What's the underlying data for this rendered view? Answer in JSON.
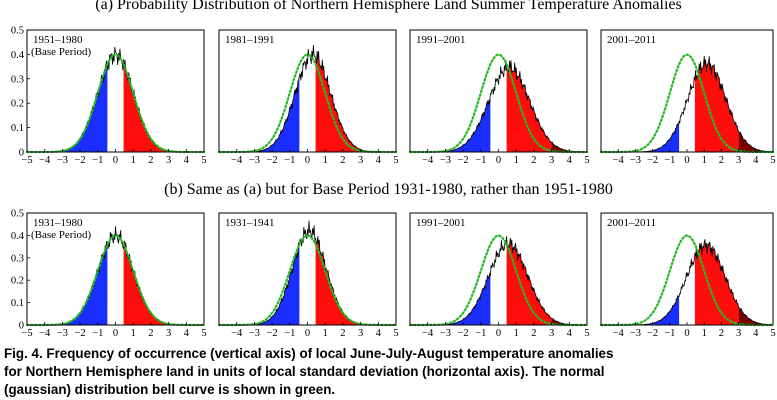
{
  "figure": {
    "row_a_title": "(a) Probability Distribution of Northern Hemisphere Land Summer Temperature Anomalies",
    "row_b_title": "(b) Same as (a) but for Base Period 1931-1980, rather than 1951-1980",
    "caption_lines": [
      "Fig. 4.  Frequency of occurrence (vertical axis) of local June-July-August temperature anomalies",
      "for Northern Hemisphere land in units of local standard deviation (horizontal axis).   The normal",
      "(gaussian) distribution bell curve is shown in green."
    ]
  },
  "colors": {
    "cold": "#1a2fff",
    "hot": "#ff0d0d",
    "extreme_hot": "#7a0000",
    "normal_curve": "#22bb22",
    "histogram_line": "#000000"
  },
  "chart_data": [
    {
      "type": "area",
      "row": "a",
      "panel_label": "1951–1980",
      "panel_sublabel": "(Base Period)",
      "mean": 0.0,
      "sd": 1.0,
      "xlim": [
        -5,
        5
      ],
      "ylim": [
        0,
        0.5
      ],
      "xticks": [
        -5,
        -4,
        -3,
        -2,
        -1,
        0,
        1,
        2,
        3,
        4,
        5
      ],
      "yticks": [
        0,
        0.1,
        0.2,
        0.3,
        0.4,
        0.5
      ],
      "show_yticks": true,
      "show_normal_curve": true
    },
    {
      "type": "area",
      "row": "a",
      "panel_label": "1981–1991",
      "panel_sublabel": "",
      "mean": 0.3,
      "sd": 1.0,
      "xlim": [
        -5,
        5
      ],
      "ylim": [
        0,
        0.5
      ],
      "xticks": [
        -4,
        -3,
        -2,
        -1,
        0,
        1,
        2,
        3,
        4,
        5
      ],
      "yticks": [],
      "show_yticks": false,
      "show_normal_curve": true
    },
    {
      "type": "area",
      "row": "a",
      "panel_label": "1991–2001",
      "panel_sublabel": "",
      "mean": 0.6,
      "sd": 1.15,
      "xlim": [
        -5,
        5
      ],
      "ylim": [
        0,
        0.5
      ],
      "xticks": [
        -4,
        -3,
        -2,
        -1,
        0,
        1,
        2,
        3,
        4,
        5
      ],
      "yticks": [],
      "show_yticks": false,
      "show_normal_curve": true
    },
    {
      "type": "area",
      "row": "a",
      "panel_label": "2001–2011",
      "panel_sublabel": "",
      "mean": 1.15,
      "sd": 1.1,
      "xlim": [
        -5,
        5
      ],
      "ylim": [
        0,
        0.5
      ],
      "xticks": [
        -4,
        -3,
        -2,
        -1,
        0,
        1,
        2,
        3,
        4,
        5
      ],
      "yticks": [],
      "show_yticks": false,
      "show_normal_curve": true
    },
    {
      "type": "area",
      "row": "b",
      "panel_label": "1931–1980",
      "panel_sublabel": "(Base Period)",
      "mean": 0.0,
      "sd": 1.0,
      "xlim": [
        -5,
        5
      ],
      "ylim": [
        0,
        0.5
      ],
      "xticks": [
        -5,
        -4,
        -3,
        -2,
        -1,
        0,
        1,
        2,
        3,
        4,
        5
      ],
      "yticks": [
        0,
        0.1,
        0.2,
        0.3,
        0.4,
        0.5
      ],
      "show_yticks": true,
      "show_normal_curve": true
    },
    {
      "type": "area",
      "row": "b",
      "panel_label": "1931–1941",
      "panel_sublabel": "",
      "mean": 0.1,
      "sd": 0.95,
      "xlim": [
        -5,
        5
      ],
      "ylim": [
        0,
        0.5
      ],
      "xticks": [
        -4,
        -3,
        -2,
        -1,
        0,
        1,
        2,
        3,
        4,
        5
      ],
      "yticks": [],
      "show_yticks": false,
      "show_normal_curve": true
    },
    {
      "type": "area",
      "row": "b",
      "panel_label": "1991–2001",
      "panel_sublabel": "",
      "mean": 0.55,
      "sd": 1.1,
      "xlim": [
        -5,
        5
      ],
      "ylim": [
        0,
        0.5
      ],
      "xticks": [
        -4,
        -3,
        -2,
        -1,
        0,
        1,
        2,
        3,
        4,
        5
      ],
      "yticks": [],
      "show_yticks": false,
      "show_normal_curve": true
    },
    {
      "type": "area",
      "row": "b",
      "panel_label": "2001–2011",
      "panel_sublabel": "",
      "mean": 1.1,
      "sd": 1.12,
      "xlim": [
        -5,
        5
      ],
      "ylim": [
        0,
        0.5
      ],
      "xticks": [
        -4,
        -3,
        -2,
        -1,
        0,
        1,
        2,
        3,
        4,
        5
      ],
      "yticks": [],
      "show_yticks": false,
      "show_normal_curve": true
    }
  ]
}
